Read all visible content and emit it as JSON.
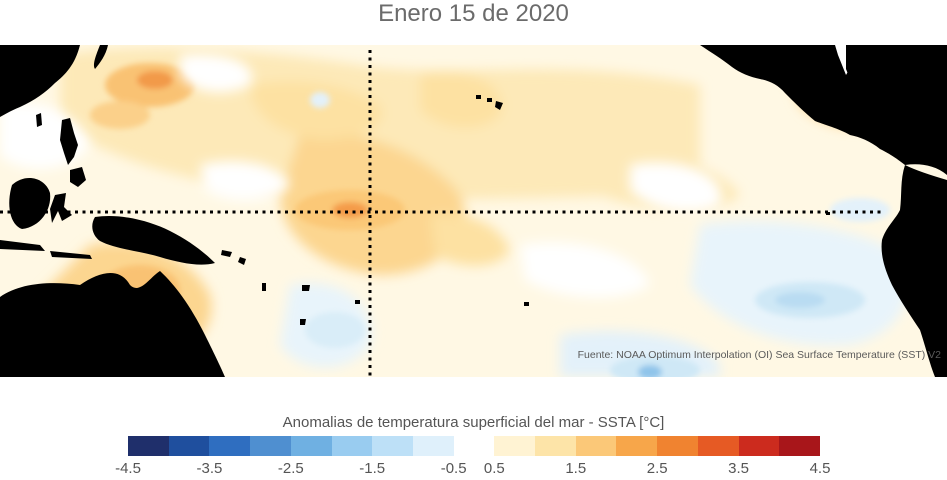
{
  "title": "Enero 15 de 2020",
  "source": "Fuente: NOAA Optimum Interpolation (OI) Sea Surface Temperature (SST) V2",
  "colorbar": {
    "title": "Anomalias de temperatura superficial del mar - SSTA  [°C]",
    "colors": [
      "#1f2f6b",
      "#1f4f9e",
      "#2f6ec0",
      "#4f8fd0",
      "#6fb0e2",
      "#99ccf0",
      "#bde0f7",
      "#dff0fb",
      "#ffffff",
      "#fff3d3",
      "#fde4a8",
      "#fbc878",
      "#f7a64a",
      "#f08330",
      "#e65a24",
      "#cc2b1e",
      "#a8161a"
    ],
    "tick_labels": [
      "-4.5",
      "-3.5",
      "-2.5",
      "-1.5",
      "-0.5",
      "0.5",
      "1.5",
      "2.5",
      "3.5",
      "4.5"
    ]
  },
  "map": {
    "land_color": "#000000",
    "ocean_base_color": "#fff8e4",
    "reference_lines": [
      "equator",
      "dateline"
    ]
  }
}
